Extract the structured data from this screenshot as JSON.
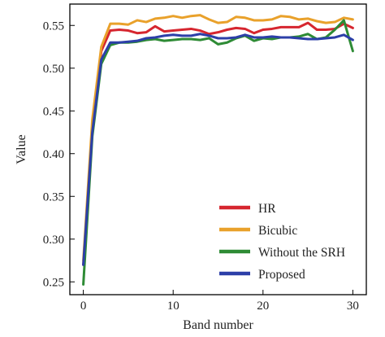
{
  "chart_data": {
    "type": "line",
    "xlabel": "Band number",
    "ylabel": "Value",
    "xlim": [
      -1.5,
      31.5
    ],
    "ylim": [
      0.235,
      0.575
    ],
    "xticks": [
      0,
      10,
      20,
      30
    ],
    "yticks": [
      0.25,
      0.3,
      0.35,
      0.4,
      0.45,
      0.5,
      0.55
    ],
    "ytick_labels": [
      "0.25",
      "0.30",
      "0.35",
      "0.40",
      "0.45",
      "0.50",
      "0.55"
    ],
    "grid": false,
    "legend_position": "bottom-right",
    "x": [
      0,
      1,
      2,
      3,
      4,
      5,
      6,
      7,
      8,
      9,
      10,
      11,
      12,
      13,
      14,
      15,
      16,
      17,
      18,
      19,
      20,
      21,
      22,
      23,
      24,
      25,
      26,
      27,
      28,
      29,
      30
    ],
    "series": [
      {
        "name": "HR",
        "color": "#d6262f",
        "values": [
          0.27,
          0.43,
          0.52,
          0.544,
          0.545,
          0.544,
          0.541,
          0.542,
          0.549,
          0.543,
          0.544,
          0.545,
          0.546,
          0.544,
          0.54,
          0.542,
          0.545,
          0.547,
          0.546,
          0.541,
          0.545,
          0.546,
          0.548,
          0.548,
          0.548,
          0.553,
          0.545,
          0.545,
          0.546,
          0.552,
          0.547
        ]
      },
      {
        "name": "Bicubic",
        "color": "#e9a12b",
        "values": [
          0.275,
          0.44,
          0.525,
          0.552,
          0.552,
          0.551,
          0.556,
          0.554,
          0.558,
          0.559,
          0.561,
          0.559,
          0.561,
          0.562,
          0.557,
          0.553,
          0.554,
          0.56,
          0.559,
          0.556,
          0.556,
          0.557,
          0.561,
          0.56,
          0.557,
          0.558,
          0.555,
          0.553,
          0.554,
          0.559,
          0.557
        ]
      },
      {
        "name": "Without the SRH",
        "color": "#2e8b35",
        "values": [
          0.247,
          0.42,
          0.505,
          0.527,
          0.53,
          0.53,
          0.531,
          0.533,
          0.534,
          0.532,
          0.533,
          0.534,
          0.534,
          0.533,
          0.535,
          0.528,
          0.53,
          0.535,
          0.538,
          0.532,
          0.535,
          0.534,
          0.536,
          0.536,
          0.537,
          0.54,
          0.534,
          0.536,
          0.545,
          0.556,
          0.52
        ]
      },
      {
        "name": "Proposed",
        "color": "#2c3fa8",
        "values": [
          0.27,
          0.425,
          0.51,
          0.53,
          0.53,
          0.531,
          0.532,
          0.535,
          0.536,
          0.538,
          0.539,
          0.538,
          0.538,
          0.54,
          0.538,
          0.535,
          0.535,
          0.536,
          0.539,
          0.536,
          0.536,
          0.537,
          0.536,
          0.536,
          0.535,
          0.534,
          0.534,
          0.535,
          0.536,
          0.539,
          0.533
        ]
      }
    ]
  }
}
